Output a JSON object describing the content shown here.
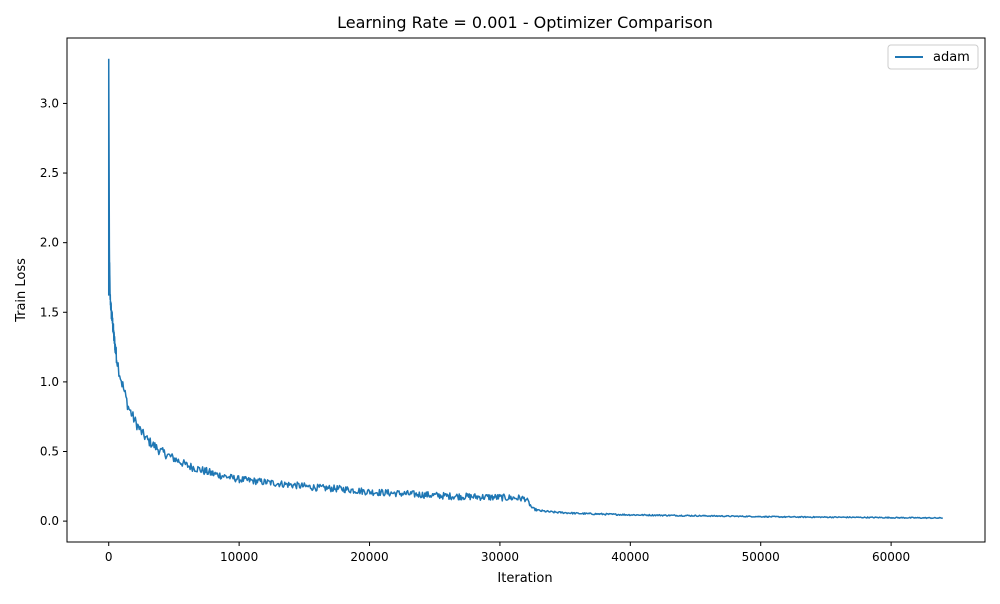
{
  "chart_data": {
    "type": "line",
    "title": "Learning Rate = 0.001 - Optimizer Comparison",
    "xlabel": "Iteration",
    "ylabel": "Train Loss",
    "xlim": [
      -3200,
      67200
    ],
    "ylim": [
      -0.15,
      3.47
    ],
    "xticks": [
      0,
      10000,
      20000,
      30000,
      40000,
      50000,
      60000
    ],
    "xtick_labels": [
      "0",
      "10000",
      "20000",
      "30000",
      "40000",
      "50000",
      "60000"
    ],
    "yticks": [
      0.0,
      0.5,
      1.0,
      1.5,
      2.0,
      2.5,
      3.0
    ],
    "ytick_labels": [
      "0.0",
      "0.5",
      "1.0",
      "1.5",
      "2.0",
      "2.5",
      "3.0"
    ],
    "grid": false,
    "legend": {
      "position": "top-right",
      "entries": [
        "adam"
      ]
    },
    "series": [
      {
        "name": "adam",
        "color": "#1f77b4",
        "x": [
          0,
          50,
          100,
          200,
          300,
          400,
          600,
          800,
          1000,
          1500,
          2000,
          2500,
          3000,
          3500,
          4000,
          5000,
          6000,
          7000,
          8000,
          9000,
          10000,
          12000,
          14000,
          16000,
          18000,
          20000,
          22000,
          24000,
          26000,
          28000,
          30000,
          31500,
          32000,
          32500,
          33000,
          34000,
          36000,
          38000,
          40000,
          44000,
          48000,
          52000,
          56000,
          60000,
          64000
        ],
        "y": [
          3.32,
          1.95,
          1.62,
          1.5,
          1.42,
          1.32,
          1.18,
          1.08,
          1.0,
          0.82,
          0.72,
          0.64,
          0.58,
          0.54,
          0.5,
          0.45,
          0.4,
          0.37,
          0.34,
          0.32,
          0.3,
          0.28,
          0.26,
          0.24,
          0.23,
          0.21,
          0.2,
          0.19,
          0.18,
          0.175,
          0.17,
          0.165,
          0.16,
          0.09,
          0.075,
          0.065,
          0.055,
          0.05,
          0.045,
          0.04,
          0.035,
          0.03,
          0.028,
          0.025,
          0.022
        ],
        "noise": [
          0,
          0.05,
          0.05,
          0.06,
          0.06,
          0.06,
          0.05,
          0.05,
          0.05,
          0.04,
          0.04,
          0.035,
          0.035,
          0.035,
          0.035,
          0.03,
          0.03,
          0.03,
          0.03,
          0.025,
          0.025,
          0.025,
          0.025,
          0.025,
          0.025,
          0.025,
          0.025,
          0.025,
          0.025,
          0.025,
          0.025,
          0.025,
          0.02,
          0.01,
          0.008,
          0.007,
          0.006,
          0.006,
          0.005,
          0.005,
          0.004,
          0.004,
          0.004,
          0.004,
          0.004
        ]
      }
    ]
  }
}
